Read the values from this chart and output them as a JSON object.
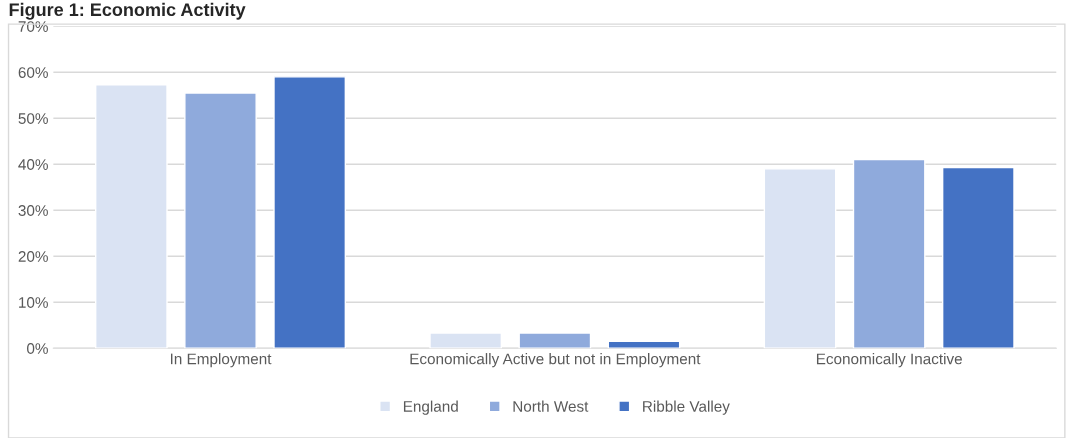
{
  "chart_data": {
    "type": "bar",
    "title": "Figure 1: Economic Activity",
    "categories": [
      "In Employment",
      "Economically Active but not in Employment",
      "Economically Inactive"
    ],
    "series": [
      {
        "name": "England",
        "color": "#dae3f3",
        "values": [
          57.3,
          3.3,
          39.0
        ]
      },
      {
        "name": "North West",
        "color": "#8faadc",
        "values": [
          55.5,
          3.3,
          41.0
        ]
      },
      {
        "name": "Ribble Valley",
        "color": "#4472c4",
        "values": [
          59.0,
          1.5,
          39.3
        ]
      }
    ],
    "ylim": [
      0,
      70
    ],
    "yticks": [
      {
        "value": 0,
        "label": "0%"
      },
      {
        "value": 10,
        "label": "10%"
      },
      {
        "value": 20,
        "label": "20%"
      },
      {
        "value": 30,
        "label": "30%"
      },
      {
        "value": 40,
        "label": "40%"
      },
      {
        "value": 50,
        "label": "50%"
      },
      {
        "value": 60,
        "label": "60%"
      },
      {
        "value": 70,
        "label": "70%"
      }
    ],
    "grid": "y",
    "legend": "bottom"
  }
}
